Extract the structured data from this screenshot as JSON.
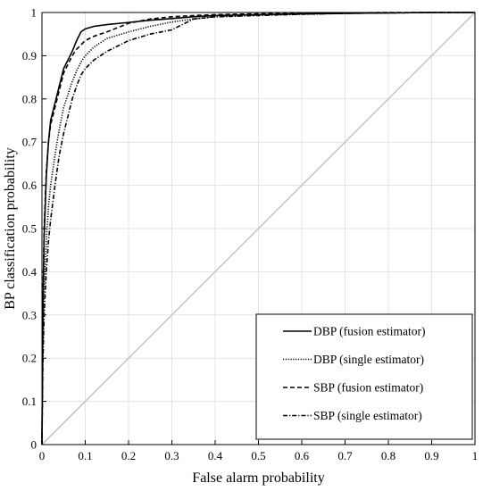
{
  "chart_data": {
    "type": "line",
    "title": "",
    "xlabel": "False alarm probability",
    "ylabel": "BP classification probability",
    "xlim": [
      0,
      1
    ],
    "ylim": [
      0,
      1
    ],
    "x_ticks": [
      "0",
      "0.1",
      "0.2",
      "0.3",
      "0.4",
      "0.5",
      "0.6",
      "0.7",
      "0.8",
      "0.9",
      "1"
    ],
    "y_ticks": [
      "0",
      "0.1",
      "0.2",
      "0.3",
      "0.4",
      "0.5",
      "0.6",
      "0.7",
      "0.8",
      "0.9",
      "1"
    ],
    "grid": true,
    "legend_position": "bottom-right",
    "series": [
      {
        "name": "DBP (fusion estimator)",
        "style": "solid",
        "color": "#000000",
        "x": [
          0,
          0.002,
          0.005,
          0.01,
          0.015,
          0.02,
          0.03,
          0.04,
          0.05,
          0.06,
          0.07,
          0.08,
          0.09,
          0.1,
          0.12,
          0.15,
          0.2,
          0.25,
          0.3,
          0.35,
          0.4,
          0.5,
          0.6,
          0.7,
          0.8,
          0.9,
          1
        ],
        "y": [
          0,
          0.3,
          0.48,
          0.62,
          0.7,
          0.75,
          0.79,
          0.83,
          0.87,
          0.89,
          0.91,
          0.935,
          0.955,
          0.962,
          0.968,
          0.972,
          0.977,
          0.982,
          0.986,
          0.99,
          0.993,
          0.995,
          0.997,
          0.998,
          0.999,
          1,
          1
        ]
      },
      {
        "name": "DBP (single estimator)",
        "style": "dotted",
        "color": "#000000",
        "x": [
          0,
          0.002,
          0.005,
          0.01,
          0.015,
          0.02,
          0.03,
          0.04,
          0.05,
          0.06,
          0.07,
          0.08,
          0.09,
          0.1,
          0.12,
          0.15,
          0.2,
          0.25,
          0.3,
          0.35,
          0.4,
          0.5,
          0.6,
          0.7,
          0.8,
          0.9,
          1
        ],
        "y": [
          0,
          0.22,
          0.36,
          0.47,
          0.55,
          0.6,
          0.67,
          0.73,
          0.78,
          0.81,
          0.84,
          0.865,
          0.885,
          0.9,
          0.92,
          0.94,
          0.955,
          0.968,
          0.978,
          0.985,
          0.99,
          0.994,
          0.996,
          0.998,
          0.999,
          1,
          1
        ]
      },
      {
        "name": "SBP (fusion estimator)",
        "style": "dashed",
        "color": "#000000",
        "x": [
          0,
          0.002,
          0.005,
          0.01,
          0.015,
          0.02,
          0.03,
          0.04,
          0.05,
          0.06,
          0.07,
          0.08,
          0.09,
          0.1,
          0.12,
          0.15,
          0.2,
          0.25,
          0.3,
          0.35,
          0.4,
          0.5,
          0.6,
          0.7,
          0.8,
          0.9,
          1
        ],
        "y": [
          0,
          0.32,
          0.5,
          0.63,
          0.7,
          0.74,
          0.78,
          0.82,
          0.86,
          0.88,
          0.9,
          0.915,
          0.925,
          0.935,
          0.945,
          0.955,
          0.975,
          0.985,
          0.99,
          0.993,
          0.995,
          0.997,
          0.998,
          0.999,
          1,
          1,
          1
        ]
      },
      {
        "name": "SBP (single estimator)",
        "style": "dashdot",
        "color": "#000000",
        "x": [
          0,
          0.002,
          0.005,
          0.01,
          0.015,
          0.02,
          0.03,
          0.04,
          0.05,
          0.06,
          0.07,
          0.08,
          0.09,
          0.1,
          0.12,
          0.15,
          0.2,
          0.25,
          0.3,
          0.32,
          0.35,
          0.4,
          0.5,
          0.6,
          0.7,
          0.8,
          0.9,
          1
        ],
        "y": [
          0,
          0.18,
          0.3,
          0.4,
          0.47,
          0.52,
          0.6,
          0.67,
          0.72,
          0.76,
          0.8,
          0.83,
          0.855,
          0.87,
          0.89,
          0.91,
          0.935,
          0.95,
          0.96,
          0.97,
          0.985,
          0.99,
          0.993,
          0.996,
          0.998,
          0.999,
          1,
          1
        ]
      },
      {
        "name": "",
        "style": "solid",
        "color": "#c8c8c8",
        "x": [
          0,
          1
        ],
        "y": [
          0,
          1
        ]
      }
    ]
  }
}
